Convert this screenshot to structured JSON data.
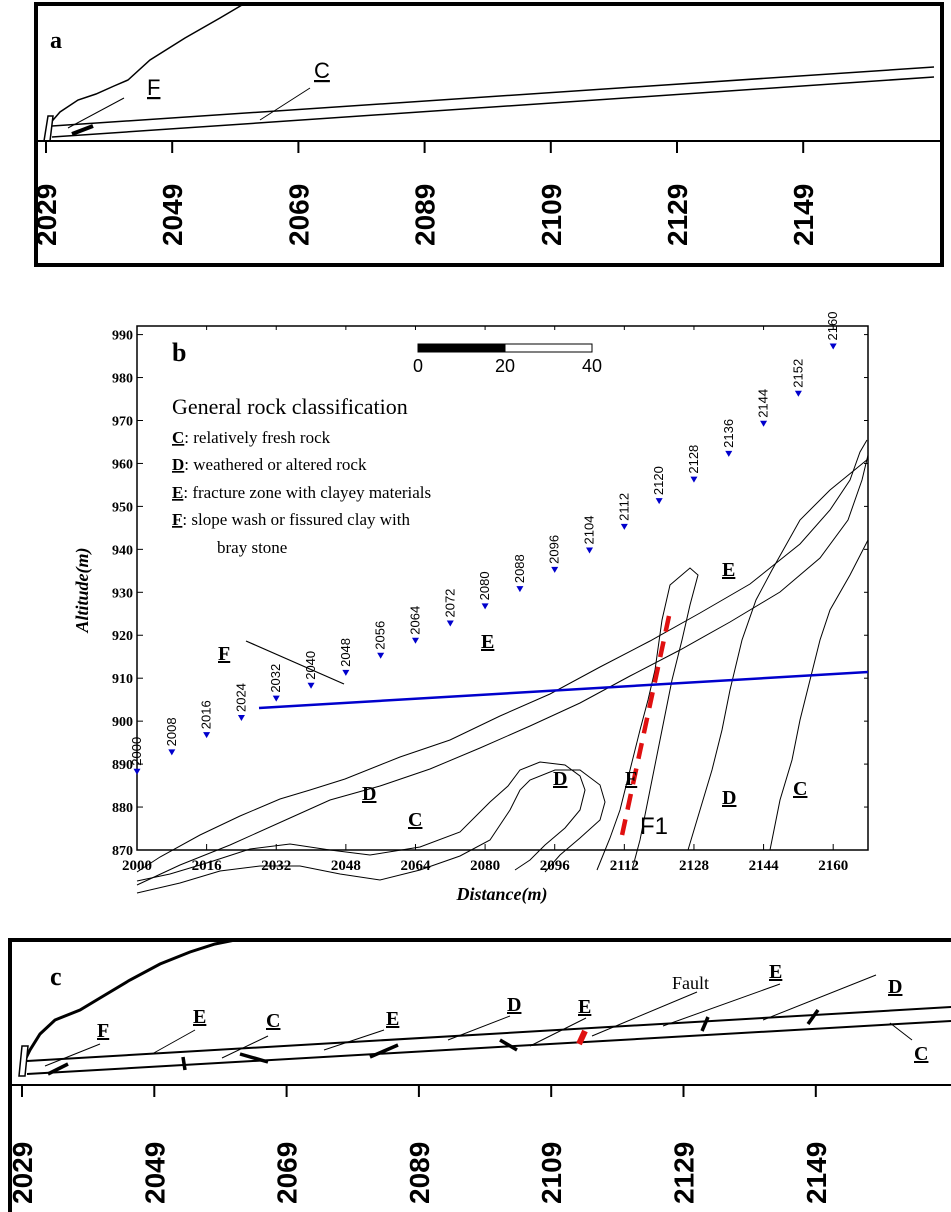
{
  "panel_a": {
    "label": "a",
    "ticks": [
      "2029",
      "2049",
      "2069",
      "2089",
      "2109",
      "2129",
      "2149"
    ],
    "labels": {
      "f": "F",
      "c": "C"
    }
  },
  "panel_b": {
    "label": "b",
    "y_label": "Altitude(m)",
    "x_label": "Distance(m)",
    "y_ticks": [
      "990",
      "980",
      "970",
      "960",
      "950",
      "940",
      "930",
      "920",
      "910",
      "900",
      "890",
      "880",
      "870"
    ],
    "x_ticks": [
      "2000",
      "2016",
      "2032",
      "2048",
      "2064",
      "2080",
      "2096",
      "2112",
      "2128",
      "2144",
      "2160"
    ],
    "scale_bar": [
      "0",
      "20",
      "40"
    ],
    "legend": {
      "title": "General rock classification",
      "items": [
        {
          "key": "C",
          "text": ": relatively fresh rock"
        },
        {
          "key": "D",
          "text": ": weathered or altered rock"
        },
        {
          "key": "E",
          "text": ": fracture zone with clayey materials"
        },
        {
          "key": "F",
          "text": ": slope wash or fissured clay with"
        }
      ],
      "continuation": "bray stone"
    },
    "stations": [
      "2000",
      "2008",
      "2016",
      "2024",
      "2032",
      "2040",
      "2048",
      "2056",
      "2064",
      "2072",
      "2080",
      "2088",
      "2096",
      "2104",
      "2112",
      "2120",
      "2128",
      "2136",
      "2144",
      "2152",
      "2160"
    ],
    "zone_labels": [
      "F",
      "E",
      "E",
      "D",
      "C",
      "D",
      "F",
      "D",
      "C"
    ],
    "fault_label": "F1",
    "colors": {
      "section_line": "#0000cc",
      "fault": "#e01010",
      "marker": "#0000cc"
    }
  },
  "panel_c": {
    "label": "c",
    "ticks": [
      "2029",
      "2049",
      "2069",
      "2089",
      "2109",
      "2129",
      "2149"
    ],
    "labels": [
      "F",
      "E",
      "C",
      "E",
      "D",
      "E",
      "E",
      "D",
      "C"
    ],
    "fault_text": "Fault"
  }
}
